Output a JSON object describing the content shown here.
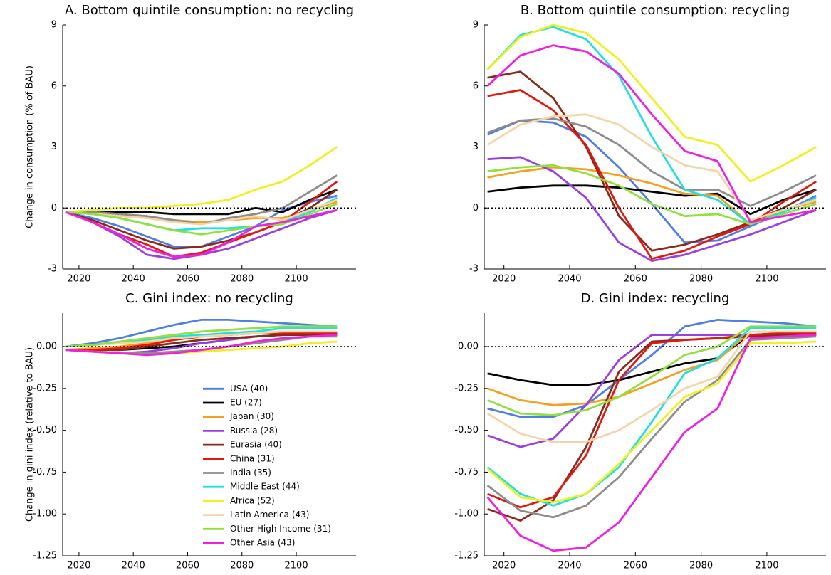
{
  "chart_data": [
    {
      "type": "line",
      "title": "A. Bottom quintile consumption: no recycling",
      "ylabel": "Change in consumption (% of BAU)",
      "x": [
        2015,
        2025,
        2035,
        2045,
        2055,
        2065,
        2075,
        2085,
        2095,
        2105,
        2115
      ],
      "xlim": [
        2014,
        2122
      ],
      "xticks": [
        2020,
        2040,
        2060,
        2080,
        2100
      ],
      "ylim": [
        -3,
        9
      ],
      "yticks": [
        -3,
        0,
        3,
        6,
        9
      ],
      "zero_line": true,
      "series": [
        {
          "color": "#4f7fe6",
          "values": [
            -0.2,
            -0.5,
            -0.9,
            -1.4,
            -1.9,
            -1.9,
            -1.4,
            -0.9,
            -0.1,
            0.3,
            0.6
          ]
        },
        {
          "color": "#000000",
          "values": [
            -0.2,
            -0.2,
            -0.2,
            -0.2,
            -0.3,
            -0.3,
            -0.3,
            0.0,
            -0.2,
            0.4,
            0.9
          ]
        },
        {
          "color": "#f5a020",
          "values": [
            -0.2,
            -0.3,
            -0.4,
            -0.5,
            -0.6,
            -0.7,
            -0.6,
            -0.5,
            -0.5,
            -0.1,
            0.3
          ]
        },
        {
          "color": "#9b40e0",
          "values": [
            -0.2,
            -0.7,
            -1.4,
            -2.3,
            -2.5,
            -2.3,
            -2.0,
            -1.5,
            -1.0,
            -0.5,
            -0.1
          ]
        },
        {
          "color": "#8b2a1a",
          "values": [
            -0.2,
            -0.6,
            -1.1,
            -1.6,
            -2.0,
            -1.9,
            -1.6,
            -1.2,
            -0.7,
            0.0,
            0.9
          ]
        },
        {
          "color": "#e01a10",
          "values": [
            -0.2,
            -0.7,
            -1.3,
            -1.8,
            -2.4,
            -2.2,
            -1.7,
            -1.2,
            -0.7,
            0.3,
            1.3
          ]
        },
        {
          "color": "#8c8c8c",
          "values": [
            -0.2,
            -0.2,
            -0.3,
            -0.4,
            -0.6,
            -0.8,
            -0.5,
            -0.3,
            0.0,
            0.8,
            1.6
          ]
        },
        {
          "color": "#20e0e0",
          "values": [
            -0.2,
            -0.3,
            -0.5,
            -0.8,
            -1.1,
            -1.0,
            -1.0,
            -0.9,
            -0.7,
            -0.2,
            0.5
          ]
        },
        {
          "color": "#f0f020",
          "values": [
            -0.2,
            -0.1,
            0.0,
            0.0,
            0.1,
            0.2,
            0.4,
            0.9,
            1.3,
            2.1,
            3.0
          ]
        },
        {
          "color": "#f5d5a8",
          "values": [
            -0.2,
            -0.3,
            -0.4,
            -0.5,
            -0.7,
            -0.8,
            -0.6,
            -0.4,
            -0.6,
            -0.1,
            0.4
          ]
        },
        {
          "color": "#90e040",
          "values": [
            -0.2,
            -0.3,
            -0.5,
            -0.8,
            -1.1,
            -1.3,
            -1.1,
            -0.9,
            -0.8,
            -0.3,
            0.2
          ]
        },
        {
          "color": "#f020e0",
          "values": [
            -0.2,
            -0.7,
            -1.3,
            -2.0,
            -2.4,
            -2.3,
            -1.7,
            -0.9,
            -0.7,
            -0.4,
            -0.1
          ]
        }
      ]
    },
    {
      "type": "line",
      "title": "B. Bottom quintile consumption: recycling",
      "x": [
        2015,
        2025,
        2035,
        2045,
        2055,
        2065,
        2075,
        2085,
        2095,
        2105,
        2115
      ],
      "xlim": [
        2014,
        2118
      ],
      "xticks": [
        2020,
        2040,
        2060,
        2080,
        2100
      ],
      "ylim": [
        -3,
        9
      ],
      "yticks": [
        -3,
        0,
        3,
        6,
        9
      ],
      "zero_line": true,
      "series": [
        {
          "color": "#4f7fe6",
          "values": [
            3.6,
            4.3,
            4.2,
            3.5,
            2.0,
            0.2,
            -1.7,
            -1.6,
            -0.9,
            -0.2,
            0.6
          ]
        },
        {
          "color": "#000000",
          "values": [
            0.8,
            1.0,
            1.1,
            1.1,
            1.0,
            0.8,
            0.6,
            0.7,
            -0.3,
            0.4,
            0.9
          ]
        },
        {
          "color": "#f5a020",
          "values": [
            1.5,
            1.8,
            2.0,
            1.9,
            1.6,
            1.2,
            0.7,
            0.6,
            -0.8,
            -0.1,
            0.3
          ]
        },
        {
          "color": "#9b40e0",
          "values": [
            2.4,
            2.5,
            1.8,
            0.5,
            -1.7,
            -2.6,
            -2.3,
            -1.8,
            -1.3,
            -0.7,
            -0.1
          ]
        },
        {
          "color": "#8b2a1a",
          "values": [
            6.4,
            6.7,
            5.4,
            3.0,
            -0.4,
            -2.1,
            -1.8,
            -1.3,
            -0.7,
            0.0,
            0.9
          ]
        },
        {
          "color": "#e01a10",
          "values": [
            5.5,
            5.8,
            4.8,
            3.1,
            0.0,
            -2.5,
            -2.1,
            -1.4,
            -0.8,
            0.3,
            1.3
          ]
        },
        {
          "color": "#8c8c8c",
          "values": [
            3.7,
            4.3,
            4.4,
            4.0,
            3.1,
            1.8,
            0.9,
            0.9,
            0.1,
            0.8,
            1.6
          ]
        },
        {
          "color": "#20e0e0",
          "values": [
            6.8,
            8.5,
            8.9,
            8.3,
            6.5,
            3.5,
            0.9,
            0.4,
            -0.8,
            -0.2,
            0.5
          ]
        },
        {
          "color": "#f0f020",
          "values": [
            6.8,
            8.4,
            9.0,
            8.6,
            7.3,
            5.4,
            3.5,
            3.1,
            1.3,
            2.1,
            3.0
          ]
        },
        {
          "color": "#f5d5a8",
          "values": [
            3.1,
            4.1,
            4.5,
            4.6,
            4.1,
            3.0,
            2.1,
            1.8,
            -0.6,
            -0.1,
            0.4
          ]
        },
        {
          "color": "#90e040",
          "values": [
            1.8,
            2.0,
            2.1,
            1.7,
            1.1,
            0.2,
            -0.4,
            -0.3,
            -0.8,
            -0.3,
            0.2
          ]
        },
        {
          "color": "#f020e0",
          "values": [
            6.0,
            7.5,
            8.0,
            7.7,
            6.6,
            4.6,
            2.8,
            2.3,
            -0.7,
            -0.4,
            -0.1
          ]
        }
      ]
    },
    {
      "type": "line",
      "title": "C. Gini index: no recycling",
      "ylabel": "Change in gini index (relative to BAU)",
      "legend": "lower right",
      "x": [
        2015,
        2025,
        2035,
        2045,
        2055,
        2065,
        2075,
        2085,
        2095,
        2105,
        2115
      ],
      "xlim": [
        2014,
        2122
      ],
      "xticks": [
        2020,
        2040,
        2060,
        2080,
        2100
      ],
      "ylim": [
        -1.25,
        0.2
      ],
      "yticks": [
        {
          "value": -1.25,
          "label": "-1.25"
        },
        {
          "value": -1,
          "label": "-1.00"
        },
        {
          "value": -0.75,
          "label": "-0.75"
        },
        {
          "value": -0.5,
          "label": "-0.50"
        },
        {
          "value": -0.25,
          "label": "-0.25"
        },
        {
          "value": 0,
          "label": "0.00"
        }
      ],
      "zero_line": true,
      "series": [
        {
          "name": "USA (40)",
          "color": "#4f7fe6",
          "values": [
            0.0,
            0.02,
            0.05,
            0.09,
            0.13,
            0.16,
            0.16,
            0.15,
            0.14,
            0.13,
            0.12
          ]
        },
        {
          "name": "EU (27)",
          "color": "#000000",
          "values": [
            -0.02,
            -0.02,
            -0.02,
            -0.01,
            0.0,
            0.02,
            0.04,
            0.06,
            0.07,
            0.08,
            0.08
          ]
        },
        {
          "name": "Japan (30)",
          "color": "#f5a020",
          "values": [
            -0.02,
            -0.01,
            0.0,
            0.02,
            0.04,
            0.06,
            0.07,
            0.08,
            0.09,
            0.09,
            0.09
          ]
        },
        {
          "name": "Russia (28)",
          "color": "#9b40e0",
          "values": [
            -0.02,
            -0.03,
            -0.04,
            -0.03,
            -0.01,
            0.02,
            0.04,
            0.06,
            0.07,
            0.07,
            0.07
          ]
        },
        {
          "name": "Eurasia (40)",
          "color": "#8b2a1a",
          "values": [
            -0.02,
            -0.02,
            -0.02,
            0.0,
            0.02,
            0.04,
            0.05,
            0.06,
            0.07,
            0.07,
            0.07
          ]
        },
        {
          "name": "China (31)",
          "color": "#e01a10",
          "values": [
            -0.02,
            -0.02,
            -0.01,
            0.01,
            0.04,
            0.06,
            0.07,
            0.08,
            0.08,
            0.08,
            0.08
          ]
        },
        {
          "name": "India (35)",
          "color": "#8c8c8c",
          "values": [
            -0.02,
            -0.03,
            -0.04,
            -0.04,
            -0.03,
            -0.02,
            0.0,
            0.02,
            0.04,
            0.06,
            0.06
          ]
        },
        {
          "name": "Middle East (44)",
          "color": "#20e0e0",
          "values": [
            0.0,
            0.01,
            0.02,
            0.04,
            0.06,
            0.07,
            0.08,
            0.09,
            0.11,
            0.11,
            0.11
          ]
        },
        {
          "name": "Africa (52)",
          "color": "#f0f020",
          "values": [
            -0.02,
            -0.03,
            -0.04,
            -0.05,
            -0.04,
            -0.03,
            -0.02,
            -0.01,
            0.0,
            0.02,
            0.03
          ]
        },
        {
          "name": "Latin America (43)",
          "color": "#f5d5a8",
          "values": [
            0.0,
            0.01,
            0.02,
            0.03,
            0.05,
            0.06,
            0.07,
            0.08,
            0.09,
            0.09,
            0.09
          ]
        },
        {
          "name": "Other High Income (31)",
          "color": "#90e040",
          "values": [
            0.0,
            0.01,
            0.03,
            0.05,
            0.07,
            0.09,
            0.1,
            0.11,
            0.12,
            0.12,
            0.12
          ]
        },
        {
          "name": "Other Asia (43)",
          "color": "#f020e0",
          "values": [
            -0.02,
            -0.03,
            -0.04,
            -0.05,
            -0.04,
            -0.02,
            0.0,
            0.03,
            0.05,
            0.06,
            0.07
          ]
        }
      ]
    },
    {
      "type": "line",
      "title": "D. Gini index: recycling",
      "x": [
        2015,
        2025,
        2035,
        2045,
        2055,
        2065,
        2075,
        2085,
        2095,
        2105,
        2115
      ],
      "xlim": [
        2014,
        2118
      ],
      "xticks": [
        2020,
        2040,
        2060,
        2080,
        2100
      ],
      "ylim": [
        -1.25,
        0.2
      ],
      "yticks": [
        {
          "value": -1.25,
          "label": "-1.25"
        },
        {
          "value": -1,
          "label": "-1.00"
        },
        {
          "value": -0.75,
          "label": "-0.75"
        },
        {
          "value": -0.5,
          "label": "-0.50"
        },
        {
          "value": -0.25,
          "label": "-0.25"
        },
        {
          "value": 0,
          "label": "0.00"
        }
      ],
      "zero_line": true,
      "series": [
        {
          "color": "#4f7fe6",
          "values": [
            -0.37,
            -0.42,
            -0.42,
            -0.35,
            -0.2,
            -0.05,
            0.12,
            0.16,
            0.15,
            0.14,
            0.12
          ]
        },
        {
          "color": "#000000",
          "values": [
            -0.16,
            -0.2,
            -0.23,
            -0.23,
            -0.2,
            -0.15,
            -0.1,
            -0.07,
            0.07,
            0.08,
            0.08
          ]
        },
        {
          "color": "#f5a020",
          "values": [
            -0.25,
            -0.32,
            -0.35,
            -0.34,
            -0.3,
            -0.22,
            -0.14,
            -0.08,
            0.09,
            0.09,
            0.09
          ]
        },
        {
          "color": "#9b40e0",
          "values": [
            -0.53,
            -0.6,
            -0.55,
            -0.35,
            -0.08,
            0.07,
            0.07,
            0.07,
            0.07,
            0.07,
            0.07
          ]
        },
        {
          "color": "#8b2a1a",
          "values": [
            -0.97,
            -1.04,
            -0.92,
            -0.6,
            -0.15,
            0.03,
            0.04,
            0.05,
            0.06,
            0.07,
            0.07
          ]
        },
        {
          "color": "#e01a10",
          "values": [
            -0.88,
            -0.96,
            -0.9,
            -0.65,
            -0.2,
            0.02,
            0.04,
            0.05,
            0.07,
            0.08,
            0.08
          ]
        },
        {
          "color": "#8c8c8c",
          "values": [
            -0.83,
            -0.98,
            -1.02,
            -0.95,
            -0.78,
            -0.55,
            -0.33,
            -0.2,
            0.04,
            0.05,
            0.06
          ]
        },
        {
          "color": "#20e0e0",
          "values": [
            -0.72,
            -0.88,
            -0.95,
            -0.88,
            -0.72,
            -0.45,
            -0.16,
            -0.07,
            0.11,
            0.11,
            0.11
          ]
        },
        {
          "color": "#f0f020",
          "values": [
            -0.73,
            -0.9,
            -0.93,
            -0.88,
            -0.7,
            -0.5,
            -0.3,
            -0.22,
            0.02,
            0.02,
            0.03
          ]
        },
        {
          "color": "#f5d5a8",
          "values": [
            -0.4,
            -0.52,
            -0.57,
            -0.57,
            -0.5,
            -0.38,
            -0.25,
            -0.18,
            0.09,
            0.09,
            0.09
          ]
        },
        {
          "color": "#90e040",
          "values": [
            -0.32,
            -0.4,
            -0.41,
            -0.38,
            -0.3,
            -0.18,
            -0.05,
            0.0,
            0.12,
            0.12,
            0.12
          ]
        },
        {
          "color": "#f020e0",
          "values": [
            -0.9,
            -1.13,
            -1.22,
            -1.2,
            -1.05,
            -0.78,
            -0.51,
            -0.37,
            0.05,
            0.06,
            0.07
          ]
        }
      ]
    }
  ]
}
